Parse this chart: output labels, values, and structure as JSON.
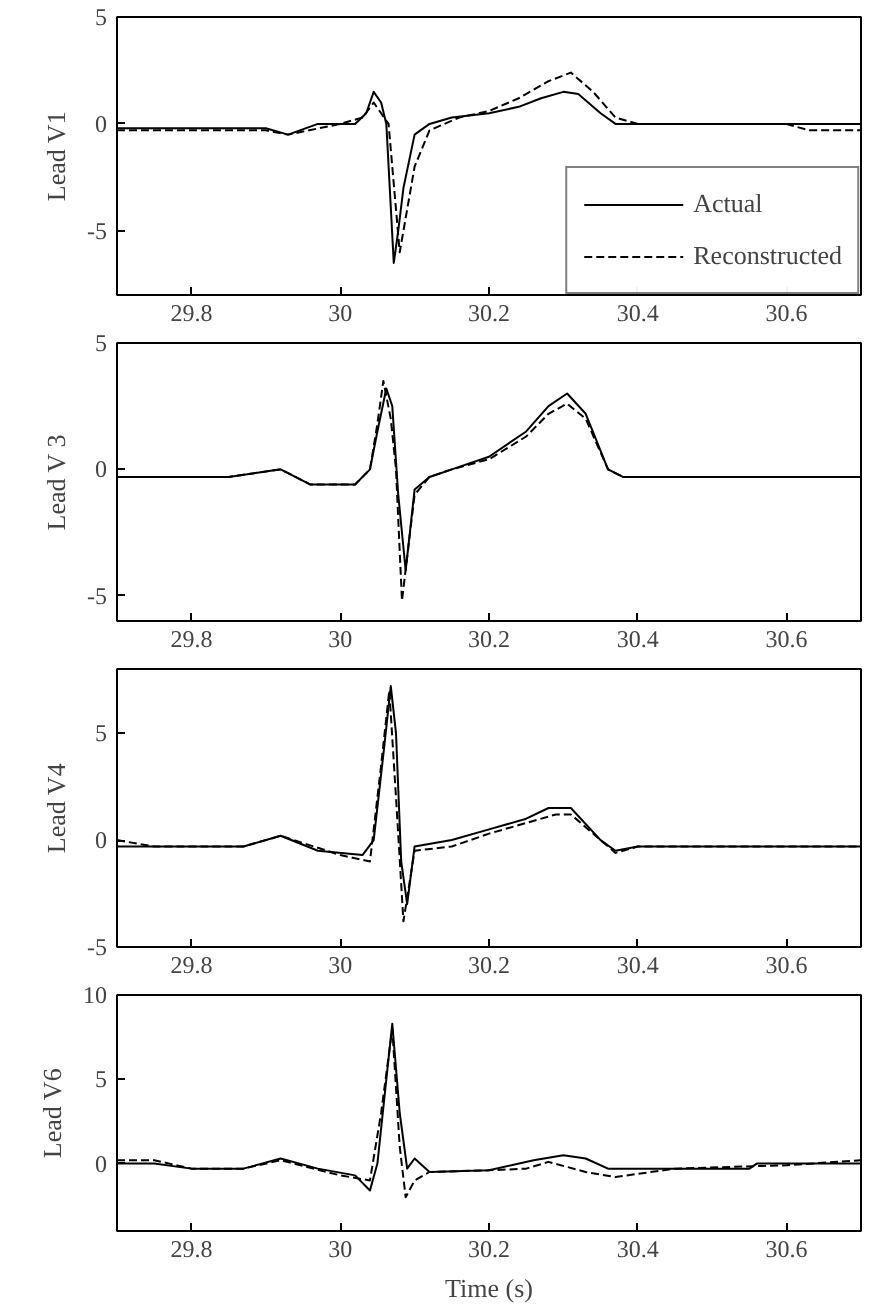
{
  "chart_data": [
    {
      "type": "line",
      "ylabel": "Lead V1",
      "xlim": [
        29.7,
        30.7
      ],
      "ylim": [
        -8,
        5
      ],
      "xticks": [
        29.8,
        30,
        30.2,
        30.4,
        30.6
      ],
      "yticks": [
        -5,
        0,
        5
      ],
      "grid": false,
      "legend": "bottom right",
      "series": [
        {
          "name": "Actual",
          "color": "#000000",
          "line_style": "solid",
          "x": [
            29.7,
            29.8,
            29.9,
            29.93,
            29.97,
            30.02,
            30.035,
            30.045,
            30.055,
            30.062,
            30.072,
            30.078,
            30.085,
            30.1,
            30.12,
            30.15,
            30.2,
            30.24,
            30.27,
            30.3,
            30.32,
            30.35,
            30.37,
            30.5,
            30.7
          ],
          "values": [
            -0.2,
            -0.2,
            -0.2,
            -0.5,
            0,
            0,
            0.5,
            1.5,
            1,
            0,
            -6.5,
            -5,
            -3,
            -0.5,
            0,
            0.3,
            0.5,
            0.8,
            1.2,
            1.5,
            1.4,
            0.5,
            0,
            0,
            0
          ]
        },
        {
          "name": "Reconstructed",
          "color": "#000000",
          "line_style": "dashed",
          "x": [
            29.7,
            29.8,
            29.9,
            29.93,
            30.0,
            30.03,
            30.045,
            30.065,
            30.08,
            30.09,
            30.1,
            30.12,
            30.16,
            30.2,
            30.24,
            30.28,
            30.31,
            30.34,
            30.37,
            30.4,
            30.6,
            30.63,
            30.7
          ],
          "values": [
            -0.3,
            -0.3,
            -0.3,
            -0.5,
            0,
            0.3,
            1,
            0,
            -6,
            -4,
            -2,
            -0.3,
            0.3,
            0.6,
            1.2,
            2,
            2.4,
            1.5,
            0.3,
            0,
            0,
            -0.3,
            -0.3
          ]
        }
      ]
    },
    {
      "type": "line",
      "ylabel": "Lead V 3",
      "xlim": [
        29.7,
        30.7
      ],
      "ylim": [
        -6,
        5
      ],
      "xticks": [
        29.8,
        30,
        30.2,
        30.4,
        30.6
      ],
      "yticks": [
        -5,
        0,
        5
      ],
      "grid": false,
      "legend": false,
      "series": [
        {
          "color": "#000000",
          "line_style": "solid",
          "x": [
            29.7,
            29.85,
            29.92,
            29.96,
            30.02,
            30.04,
            30.05,
            30.062,
            30.07,
            30.078,
            30.088,
            30.1,
            30.12,
            30.15,
            30.2,
            30.25,
            30.28,
            30.305,
            30.33,
            30.36,
            30.38,
            30.7
          ],
          "values": [
            -0.3,
            -0.3,
            0,
            -0.6,
            -0.6,
            0,
            1.5,
            3.2,
            2.5,
            -1,
            -4,
            -0.8,
            -0.3,
            0,
            0.5,
            1.5,
            2.5,
            3,
            2.2,
            0,
            -0.3,
            -0.3
          ]
        },
        {
          "color": "#000000",
          "line_style": "dashed",
          "x": [
            29.7,
            29.85,
            29.92,
            29.96,
            30.02,
            30.04,
            30.05,
            30.058,
            30.068,
            30.075,
            30.083,
            30.1,
            30.12,
            30.15,
            30.2,
            30.25,
            30.28,
            30.305,
            30.33,
            30.36,
            30.38,
            30.7
          ],
          "values": [
            -0.3,
            -0.3,
            0,
            -0.6,
            -0.6,
            0,
            1.8,
            3.5,
            2,
            0,
            -5.2,
            -1,
            -0.3,
            0,
            0.4,
            1.3,
            2.2,
            2.6,
            2,
            0,
            -0.3,
            -0.3
          ]
        }
      ]
    },
    {
      "type": "line",
      "ylabel": "Lead V4",
      "xlim": [
        29.7,
        30.7
      ],
      "ylim": [
        -5,
        8
      ],
      "xticks": [
        29.8,
        30,
        30.2,
        30.4,
        30.6
      ],
      "yticks": [
        -5,
        0,
        5
      ],
      "grid": false,
      "legend": false,
      "series": [
        {
          "color": "#000000",
          "line_style": "solid",
          "x": [
            29.7,
            29.87,
            29.92,
            29.97,
            30.03,
            30.045,
            30.058,
            30.068,
            30.075,
            30.082,
            30.09,
            30.1,
            30.15,
            30.2,
            30.25,
            30.28,
            30.31,
            30.35,
            30.37,
            30.4,
            30.7
          ],
          "values": [
            -0.3,
            -0.3,
            0.2,
            -0.5,
            -0.7,
            0,
            4,
            7.2,
            5,
            -1,
            -3,
            -0.3,
            0,
            0.5,
            1,
            1.5,
            1.5,
            0,
            -0.5,
            -0.3,
            -0.3
          ]
        },
        {
          "color": "#000000",
          "line_style": "dashed",
          "x": [
            29.7,
            29.75,
            29.87,
            29.92,
            30.0,
            30.04,
            30.055,
            30.066,
            30.075,
            30.085,
            30.1,
            30.15,
            30.2,
            30.25,
            30.29,
            30.31,
            30.35,
            30.37,
            30.4,
            30.7
          ],
          "values": [
            0,
            -0.3,
            -0.3,
            0.2,
            -0.7,
            -1,
            3.5,
            7,
            2,
            -3.8,
            -0.5,
            -0.3,
            0.3,
            0.8,
            1.2,
            1.2,
            0,
            -0.6,
            -0.3,
            -0.3
          ]
        }
      ]
    },
    {
      "type": "line",
      "ylabel": "Lead V6",
      "xlabel": "Time (s)",
      "xlim": [
        29.7,
        30.7
      ],
      "ylim": [
        -4,
        10
      ],
      "xticks": [
        29.8,
        30,
        30.2,
        30.4,
        30.6
      ],
      "yticks": [
        0,
        5,
        10
      ],
      "grid": false,
      "legend": false,
      "series": [
        {
          "color": "#000000",
          "line_style": "solid",
          "x": [
            29.7,
            29.75,
            29.8,
            29.87,
            29.92,
            29.97,
            30.02,
            30.04,
            30.05,
            30.062,
            30.07,
            30.08,
            30.09,
            30.1,
            30.12,
            30.2,
            30.26,
            30.3,
            30.33,
            30.36,
            30.55,
            30.56,
            30.7
          ],
          "values": [
            0,
            0,
            -0.3,
            -0.3,
            0.3,
            -0.3,
            -0.7,
            -1.6,
            0,
            5,
            8.3,
            3,
            -0.3,
            0.3,
            -0.5,
            -0.4,
            0.2,
            0.5,
            0.3,
            -0.3,
            -0.3,
            0,
            0
          ]
        },
        {
          "color": "#000000",
          "line_style": "dashed",
          "x": [
            29.7,
            29.75,
            29.8,
            29.87,
            29.92,
            30.0,
            30.04,
            30.055,
            30.07,
            30.08,
            30.088,
            30.1,
            30.12,
            30.2,
            30.25,
            30.28,
            30.33,
            30.37,
            30.45,
            30.6,
            30.7
          ],
          "values": [
            0.2,
            0.2,
            -0.3,
            -0.3,
            0.2,
            -0.7,
            -1,
            3,
            8,
            1,
            -2,
            -1,
            -0.5,
            -0.4,
            -0.3,
            0.1,
            -0.5,
            -0.8,
            -0.3,
            -0.1,
            0.2
          ]
        }
      ]
    }
  ]
}
